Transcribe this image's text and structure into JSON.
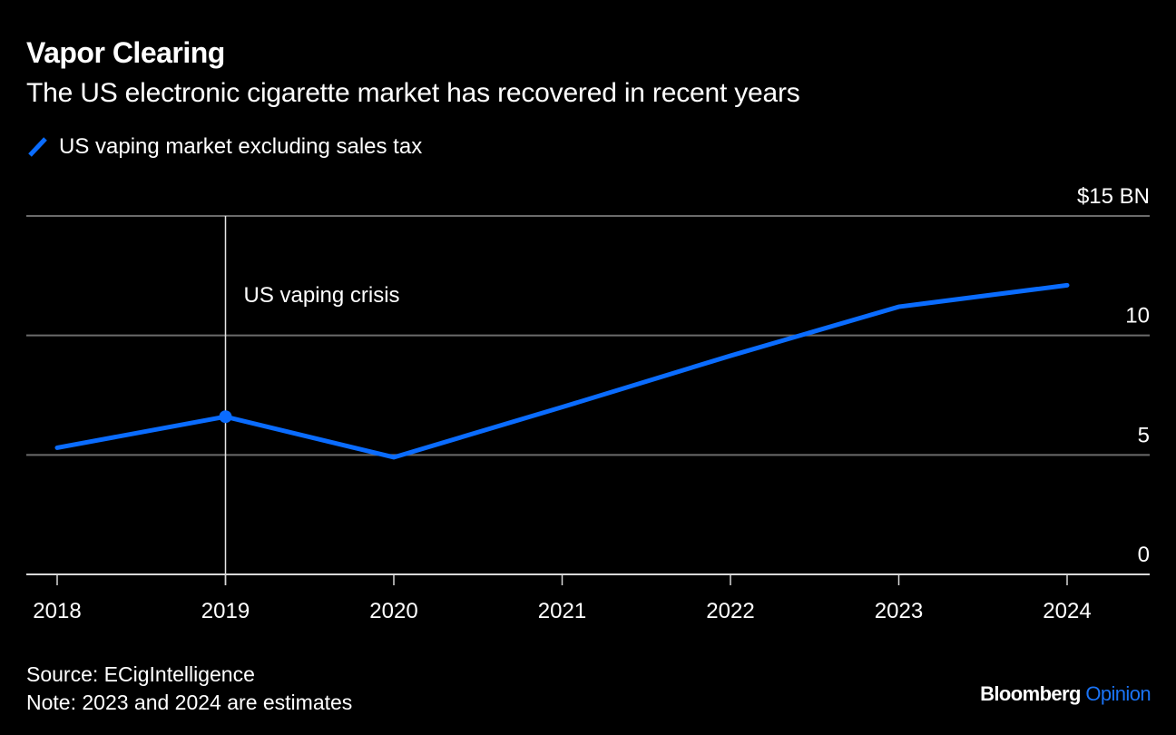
{
  "chart_data": {
    "type": "line",
    "title": "Vapor Clearing",
    "subtitle": "The US electronic cigarette market has recovered in recent years",
    "xlabel": "",
    "ylabel": "",
    "x": [
      "2018",
      "2019",
      "2020",
      "2021",
      "2022",
      "2023",
      "2024"
    ],
    "series": [
      {
        "name": "US vaping market excluding sales tax",
        "color": "#0a6cff",
        "values": [
          5.3,
          6.6,
          4.9,
          7.0,
          9.15,
          11.2,
          12.1
        ]
      }
    ],
    "ylim": [
      0,
      15
    ],
    "yticks": [
      0,
      5,
      10,
      15
    ],
    "ytick_labels": [
      "0",
      "5",
      "10",
      "$15 BN"
    ],
    "grid": true,
    "axis_position": "right",
    "legend_position": "top-left",
    "annotations": [
      {
        "type": "vertical-line",
        "x": "2019",
        "label": "US vaping crisis",
        "marker_on_series": true
      }
    ]
  },
  "footer": {
    "source": "Source: ECigIntelligence",
    "note": "Note: 2023 and 2024 are estimates"
  },
  "brand": {
    "name": "Bloomberg",
    "section": "Opinion",
    "accent": "#1a73f5"
  }
}
